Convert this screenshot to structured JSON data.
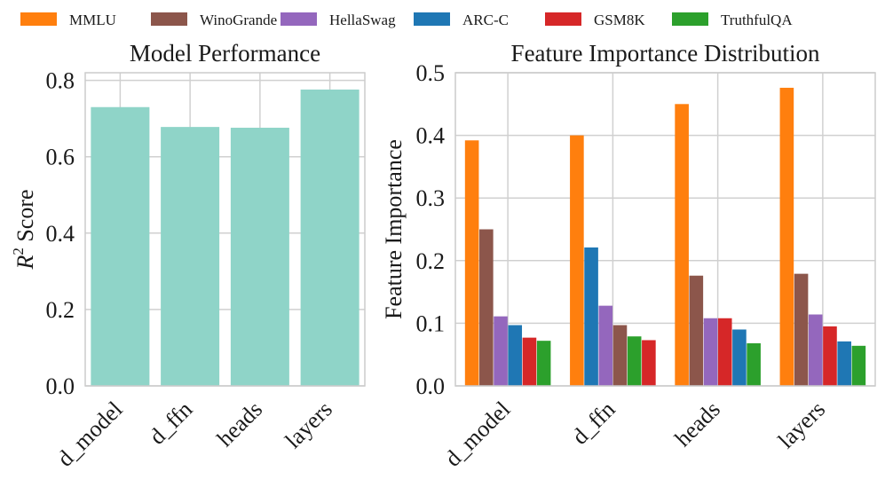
{
  "chart_data": [
    {
      "type": "bar",
      "title": "Model Performance",
      "ylabel": "R² Score",
      "xlabel": "",
      "categories": [
        "d_model",
        "d_ffn",
        "heads",
        "layers"
      ],
      "values": [
        0.73,
        0.678,
        0.676,
        0.776
      ],
      "ylim": [
        0,
        0.82
      ],
      "yticks": [
        "0.0",
        "0.2",
        "0.4",
        "0.6",
        "0.8"
      ],
      "grid": true,
      "color": "#8fd4c8"
    },
    {
      "type": "bar",
      "title": "Feature Importance Distribution",
      "ylabel": "Feature Importance",
      "xlabel": "",
      "categories": [
        "d_model",
        "d_ffn",
        "heads",
        "layers"
      ],
      "ylim": [
        0,
        0.5
      ],
      "yticks": [
        "0.0",
        "0.1",
        "0.2",
        "0.3",
        "0.4",
        "0.5"
      ],
      "grid": true,
      "groups": [
        {
          "bars": [
            {
              "series": "MMLU",
              "value": 0.392
            },
            {
              "series": "WinoGrande",
              "value": 0.25
            },
            {
              "series": "HellaSwag",
              "value": 0.111
            },
            {
              "series": "ARC-C",
              "value": 0.097
            },
            {
              "series": "GSM8K",
              "value": 0.077
            },
            {
              "series": "TruthfulQA",
              "value": 0.072
            }
          ]
        },
        {
          "bars": [
            {
              "series": "MMLU",
              "value": 0.4
            },
            {
              "series": "ARC-C",
              "value": 0.221
            },
            {
              "series": "HellaSwag",
              "value": 0.128
            },
            {
              "series": "WinoGrande",
              "value": 0.097
            },
            {
              "series": "TruthfulQA",
              "value": 0.079
            },
            {
              "series": "GSM8K",
              "value": 0.073
            }
          ]
        },
        {
          "bars": [
            {
              "series": "MMLU",
              "value": 0.45
            },
            {
              "series": "WinoGrande",
              "value": 0.176
            },
            {
              "series": "HellaSwag",
              "value": 0.108
            },
            {
              "series": "GSM8K",
              "value": 0.108
            },
            {
              "series": "ARC-C",
              "value": 0.09
            },
            {
              "series": "TruthfulQA",
              "value": 0.068
            }
          ]
        },
        {
          "bars": [
            {
              "series": "MMLU",
              "value": 0.476
            },
            {
              "series": "WinoGrande",
              "value": 0.179
            },
            {
              "series": "HellaSwag",
              "value": 0.114
            },
            {
              "series": "GSM8K",
              "value": 0.095
            },
            {
              "series": "ARC-C",
              "value": 0.071
            },
            {
              "series": "TruthfulQA",
              "value": 0.064
            }
          ]
        }
      ]
    }
  ],
  "legend": {
    "placement": "top",
    "entries": [
      {
        "name": "MMLU",
        "color": "#ff7f0e"
      },
      {
        "name": "WinoGrande",
        "color": "#8c564b"
      },
      {
        "name": "HellaSwag",
        "color": "#9467bd"
      },
      {
        "name": "ARC-C",
        "color": "#1f77b4"
      },
      {
        "name": "GSM8K",
        "color": "#d62728"
      },
      {
        "name": "TruthfulQA",
        "color": "#2ca02c"
      }
    ]
  }
}
